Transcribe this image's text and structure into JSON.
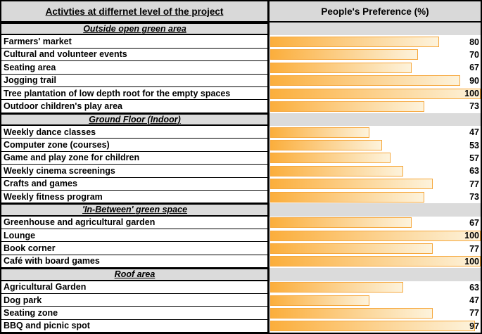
{
  "colors": {
    "header_bg": "#D9D9D9",
    "section_bg": "#DBDBDB",
    "bar_start": "#FBAE3C",
    "bar_end": "#FDF3DC",
    "bar_border": "#F6A73B"
  },
  "header": {
    "left": "Activties at differnet level of the project",
    "right": "People's Preference (%)"
  },
  "chart_data": {
    "type": "bar",
    "title": "People's Preference (%) for activities at different levels of the project",
    "xlabel": "People's Preference (%)",
    "ylabel": "Activities",
    "xlim": [
      0,
      100
    ],
    "grid": false,
    "legend": "none",
    "sections": [
      {
        "title": "Outside open green area",
        "items": [
          {
            "label": "Farmers' market",
            "value": 80
          },
          {
            "label": "Cultural and volunteer events",
            "value": 70
          },
          {
            "label": "Seating area",
            "value": 67
          },
          {
            "label": "Jogging trail",
            "value": 90
          },
          {
            "label": "Tree plantation of low depth root for the empty spaces",
            "value": 100
          },
          {
            "label": "Outdoor children's play area",
            "value": 73
          }
        ]
      },
      {
        "title": "Ground Floor (Indoor)",
        "items": [
          {
            "label": "Weekly dance classes",
            "value": 47
          },
          {
            "label": "Computer zone (courses)",
            "value": 53
          },
          {
            "label": "Game and play zone for children",
            "value": 57
          },
          {
            "label": "Weekly cinema screenings",
            "value": 63
          },
          {
            "label": "Crafts and games",
            "value": 77
          },
          {
            "label": "Weekly fitness  program",
            "value": 73
          }
        ]
      },
      {
        "title": "'In-Between' green space",
        "items": [
          {
            "label": "Greenhouse and agricultural garden",
            "value": 67
          },
          {
            "label": "Lounge",
            "value": 100
          },
          {
            "label": "Book corner",
            "value": 77
          },
          {
            "label": "Café with board games",
            "value": 100
          }
        ]
      },
      {
        "title": "Roof area",
        "items": [
          {
            "label": "Agricultural Garden",
            "value": 63
          },
          {
            "label": "Dog park",
            "value": 47
          },
          {
            "label": "Seating zone",
            "value": 77
          },
          {
            "label": "BBQ and picnic spot",
            "value": 97
          }
        ]
      }
    ]
  }
}
